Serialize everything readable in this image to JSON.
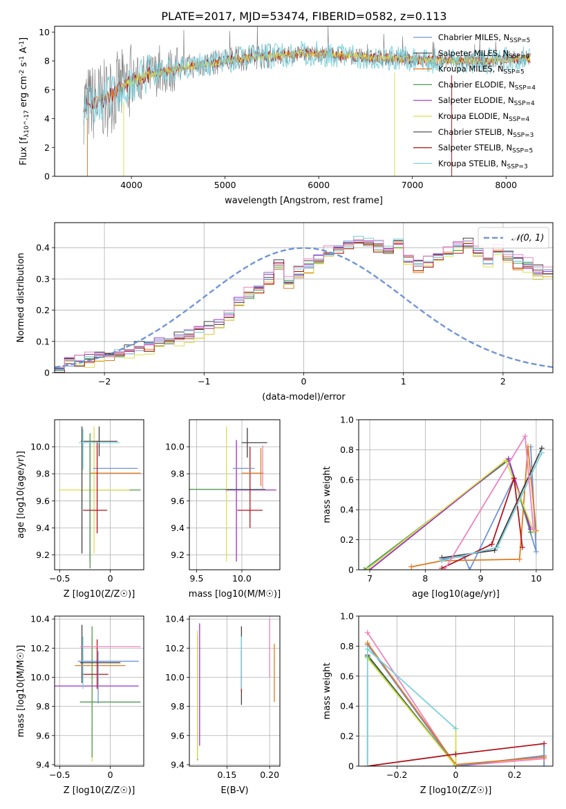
{
  "title": "PLATE=2017, MJD=53474, FIBERID=0582, z=0.113",
  "colors": {
    "blue": "#6f94d8",
    "orange": "#e07a1f",
    "green": "#4f9a4f",
    "purple": "#9a2fc8",
    "yellow": "#d9e04a",
    "dark": "#3f3f3f",
    "red": "#b0131d",
    "cyan": "#7ad1dc",
    "pink": "#ee82bf",
    "spectrum": "#808080",
    "grid": "#b0b0b0"
  },
  "chart_data": [
    {
      "id": "spectrum",
      "type": "line",
      "xlabel": "wavelength [Angstrom, rest frame]",
      "ylabel": "Flux [f_λ10^-17 erg cm^-2 s^-1 A^-1]",
      "xlim": [
        3180,
        8500
      ],
      "ylim": [
        0,
        10.4
      ],
      "xticks": [
        4000,
        5000,
        6000,
        7000,
        8000
      ],
      "yticks": [
        0,
        2,
        4,
        6,
        8,
        10
      ],
      "grid": false,
      "legend_position": "right",
      "legend": [
        {
          "name": "Chabrier MILES, N_SSP=5",
          "color_key": "blue"
        },
        {
          "name": "Salpeter MILES, N_SSP=4",
          "color_key": "dark"
        },
        {
          "name": "Kroupa MILES, N_SSP=5",
          "color_key": "orange"
        },
        {
          "name": "Chabrier ELODIE, N_SSP=4",
          "color_key": "green"
        },
        {
          "name": "Salpeter ELODIE, N_SSP=4",
          "color_key": "purple"
        },
        {
          "name": "Kroupa ELODIE, N_SSP=4",
          "color_key": "yellow"
        },
        {
          "name": "Chabrier STELIB, N_SSP=3",
          "color_key": "dark"
        },
        {
          "name": "Salpeter STELIB, N_SSP=5",
          "color_key": "red"
        },
        {
          "name": "Kroupa STELIB, N_SSP=3",
          "color_key": "cyan"
        }
      ],
      "continuum": {
        "x": [
          3520,
          3600,
          3700,
          3800,
          3900,
          4000,
          4200,
          4400,
          4600,
          4800,
          5000,
          5200,
          5400,
          5600,
          5800,
          6000,
          6200,
          6400,
          6600,
          6800,
          7000,
          7200,
          7400,
          7600,
          7800,
          8000,
          8250
        ],
        "y": [
          5.0,
          5.1,
          5.3,
          5.7,
          6.1,
          6.6,
          7.0,
          7.3,
          7.6,
          7.8,
          8.0,
          8.2,
          8.3,
          8.4,
          8.5,
          8.5,
          8.4,
          8.3,
          8.2,
          8.2,
          8.1,
          8.0,
          8.0,
          8.0,
          8.0,
          8.1,
          8.2
        ]
      },
      "spikes": [
        {
          "x": 3530,
          "y": 0
        },
        {
          "x": 3918,
          "y": 0
        },
        {
          "x": 6810,
          "y": 0
        },
        {
          "x": 7420,
          "y": 0
        }
      ]
    },
    {
      "id": "residual-hist",
      "type": "step",
      "xlabel": "(data-model)/error",
      "ylabel": "Normed distribution",
      "xlim": [
        -2.5,
        2.5
      ],
      "ylim": [
        0,
        0.48
      ],
      "xticks": [
        -2,
        -1,
        0,
        1,
        2
      ],
      "yticks": [
        0.0,
        0.1,
        0.2,
        0.3,
        0.4
      ],
      "grid": true,
      "legend_position": "top-right",
      "legend": [
        {
          "name": "𝒩(0, 1)",
          "style": "dashed",
          "color_key": "blue"
        }
      ],
      "bin_width": 0.1,
      "base_values": [
        0.02,
        0.03,
        0.035,
        0.04,
        0.05,
        0.05,
        0.06,
        0.07,
        0.08,
        0.08,
        0.09,
        0.1,
        0.11,
        0.12,
        0.13,
        0.14,
        0.15,
        0.18,
        0.22,
        0.25,
        0.26,
        0.3,
        0.34,
        0.28,
        0.32,
        0.34,
        0.36,
        0.38,
        0.39,
        0.41,
        0.42,
        0.41,
        0.4,
        0.39,
        0.41,
        0.36,
        0.34,
        0.35,
        0.37,
        0.38,
        0.4,
        0.41,
        0.38,
        0.35,
        0.39,
        0.37,
        0.35,
        0.34,
        0.32,
        0.31,
        0.3,
        0.28,
        0.27,
        0.25,
        0.26,
        0.24,
        0.22,
        0.21,
        0.23,
        0.18,
        0.17,
        0.16,
        0.15,
        0.14,
        0.12,
        0.11,
        0.1,
        0.09,
        0.08,
        0.07,
        0.06,
        0.055,
        0.05,
        0.04,
        0.035,
        0.03,
        0.03,
        0.025,
        0.02,
        0.02
      ],
      "series": [
        {
          "name": "Chabrier MILES",
          "color_key": "blue",
          "offset": 0.004
        },
        {
          "name": "Kroupa MILES",
          "color_key": "orange",
          "offset": -0.006
        },
        {
          "name": "Chabrier ELODIE",
          "color_key": "green",
          "offset": 0.002
        },
        {
          "name": "Salpeter ELODIE",
          "color_key": "purple",
          "offset": 0.008
        },
        {
          "name": "Kroupa ELODIE",
          "color_key": "yellow",
          "offset": -0.01
        },
        {
          "name": "Chabrier STELIB",
          "color_key": "dark",
          "offset": 0.01
        },
        {
          "name": "Salpeter STELIB",
          "color_key": "red",
          "offset": -0.004
        },
        {
          "name": "Kroupa STELIB",
          "color_key": "cyan",
          "offset": 0.006
        },
        {
          "name": "Salpeter MILES",
          "color_key": "pink",
          "offset": 0.014
        }
      ]
    },
    {
      "id": "z-vs-age",
      "type": "errorbar",
      "xlabel": "Z [log10(Z/Z☉)]",
      "ylabel": "age  [log10(age/yr)]",
      "xlim": [
        -0.55,
        0.33
      ],
      "ylim": [
        9.09,
        10.2
      ],
      "xticks": [
        -0.5,
        0.0
      ],
      "yticks": [
        9.2,
        9.4,
        9.6,
        9.8,
        10.0
      ],
      "grid": true,
      "points": [
        {
          "x": 0.0,
          "xerr": 0.3,
          "y": 9.68,
          "yerr": 0.0,
          "color_key": "green"
        },
        {
          "x": -0.16,
          "xerr": 0.35,
          "y": 9.68,
          "yerr": 0.47,
          "color_key": "yellow"
        },
        {
          "x": -0.28,
          "xerr": 0.0,
          "y": 9.68,
          "yerr": 0.47,
          "color_key": "dark"
        },
        {
          "x": 0.05,
          "xerr": 0.25,
          "y": 9.805,
          "yerr": 0.0,
          "color_key": "orange"
        },
        {
          "x": 0.05,
          "xerr": 0.22,
          "y": 9.84,
          "yerr": 0.0,
          "color_key": "blue"
        },
        {
          "x": -0.2,
          "xerr": 0.0,
          "y": 9.6,
          "yerr": 0.45,
          "color_key": "purple"
        },
        {
          "x": -0.11,
          "xerr": 0.18,
          "y": 10.04,
          "yerr": 0.11,
          "color_key": "dark"
        },
        {
          "x": -0.2,
          "xerr": 0.0,
          "y": 9.6,
          "yerr": 0.5,
          "color_key": "green"
        },
        {
          "x": -0.15,
          "xerr": 0.12,
          "y": 9.53,
          "yerr": 0.0,
          "color_key": "red"
        },
        {
          "x": -0.13,
          "xerr": 0.0,
          "y": 9.7,
          "yerr": 0.34,
          "color_key": "red"
        },
        {
          "x": -0.27,
          "xerr": 0.0,
          "y": 9.98,
          "yerr": 0.15,
          "color_key": "cyan"
        },
        {
          "x": -0.11,
          "xerr": 0.2,
          "y": 10.03,
          "yerr": 0.0,
          "color_key": "cyan"
        }
      ]
    },
    {
      "id": "mass-vs-age",
      "type": "errorbar",
      "xlabel": "mass [log10(M/M☉)]",
      "ylabel": "",
      "xlim": [
        9.42,
        10.42
      ],
      "ylim": [
        9.09,
        10.2
      ],
      "xticks": [
        9.5,
        10.0
      ],
      "yticks": [
        9.2,
        9.4,
        9.6,
        9.8,
        10.0
      ],
      "grid": true,
      "points": [
        {
          "x": 9.83,
          "xerr": 0.43,
          "y": 9.685,
          "yerr": 0.0,
          "color_key": "green"
        },
        {
          "x": 9.83,
          "xerr": 0.0,
          "y": 9.65,
          "yerr": 0.5,
          "color_key": "yellow"
        },
        {
          "x": 9.94,
          "xerr": 0.0,
          "y": 9.6,
          "yerr": 0.45,
          "color_key": "purple"
        },
        {
          "x": 10.1,
          "xerr": 0.28,
          "y": 9.68,
          "yerr": 0.0,
          "color_key": "purple"
        },
        {
          "x": 10.06,
          "xerr": 0.0,
          "y": 10.03,
          "yerr": 0.11,
          "color_key": "dark"
        },
        {
          "x": 10.14,
          "xerr": 0.14,
          "y": 10.03,
          "yerr": 0.0,
          "color_key": "dark"
        },
        {
          "x": 10.09,
          "xerr": 0.0,
          "y": 9.7,
          "yerr": 0.3,
          "color_key": "red"
        },
        {
          "x": 10.09,
          "xerr": 0.14,
          "y": 9.53,
          "yerr": 0.0,
          "color_key": "red"
        },
        {
          "x": 10.02,
          "xerr": 0.12,
          "y": 9.84,
          "yerr": 0.0,
          "color_key": "blue"
        },
        {
          "x": 10.21,
          "xerr": 0.0,
          "y": 9.85,
          "yerr": 0.14,
          "color_key": "orange"
        },
        {
          "x": 10.12,
          "xerr": 0.12,
          "y": 9.805,
          "yerr": 0.0,
          "color_key": "orange"
        },
        {
          "x": 10.23,
          "xerr": 0.0,
          "y": 9.85,
          "yerr": 0.16,
          "color_key": "pink"
        }
      ]
    },
    {
      "id": "age-mass-weight",
      "type": "line",
      "xlabel": "age  [log10(age/yr)]",
      "ylabel": "mass weight",
      "xlim": [
        6.8,
        10.3
      ],
      "ylim": [
        0,
        1.0
      ],
      "xticks": [
        7,
        8,
        9,
        10
      ],
      "yticks": [
        0.0,
        0.2,
        0.4,
        0.6,
        0.8,
        1.0
      ],
      "grid": true,
      "series": [
        {
          "name": "Chabrier MILES",
          "color_key": "blue",
          "x": [
            8.3,
            8.7,
            8.8,
            9.6,
            10.0,
            9.9
          ],
          "y": [
            0.07,
            0.09,
            0.0,
            0.61,
            0.12,
            0.82
          ]
        },
        {
          "name": "Kroupa MILES",
          "color_key": "orange",
          "x": [
            7.75,
            8.3,
            9.7,
            9.85,
            10.0
          ],
          "y": [
            0.02,
            0.06,
            0.07,
            0.82,
            0.26
          ]
        },
        {
          "name": "Chabrier ELODIE",
          "color_key": "green",
          "x": [
            6.9,
            9.5,
            9.9
          ],
          "y": [
            0.0,
            0.73,
            0.25
          ]
        },
        {
          "name": "Salpeter ELODIE",
          "color_key": "purple",
          "x": [
            7.0,
            9.5,
            9.9
          ],
          "y": [
            0.0,
            0.74,
            0.27
          ]
        },
        {
          "name": "Kroupa ELODIE",
          "color_key": "yellow",
          "x": [
            6.95,
            9.45,
            9.95
          ],
          "y": [
            0.0,
            0.73,
            0.26
          ]
        },
        {
          "name": "Chabrier STELIB",
          "color_key": "dark",
          "x": [
            8.3,
            9.25,
            10.1
          ],
          "y": [
            0.08,
            0.13,
            0.81
          ]
        },
        {
          "name": "Salpeter STELIB",
          "color_key": "red",
          "x": [
            8.3,
            9.2,
            9.6,
            9.75
          ],
          "y": [
            0.01,
            0.17,
            0.61,
            0.15
          ]
        },
        {
          "name": "Kroupa STELIB",
          "color_key": "cyan",
          "x": [
            8.3,
            9.3,
            10.1
          ],
          "y": [
            0.06,
            0.15,
            0.78
          ]
        },
        {
          "name": "Salpeter MILES",
          "color_key": "pink",
          "x": [
            8.35,
            9.8,
            9.95
          ],
          "y": [
            0.0,
            0.89,
            0.27
          ]
        }
      ]
    },
    {
      "id": "z-vs-mass",
      "type": "errorbar",
      "xlabel": "Z [log10(Z/Z☉)]",
      "ylabel": "mass [log10(M/M☉)]",
      "xlim": [
        -0.55,
        0.33
      ],
      "ylim": [
        9.39,
        10.42
      ],
      "xticks": [
        -0.5,
        0.0
      ],
      "yticks": [
        9.4,
        9.6,
        9.8,
        10.0,
        10.2,
        10.4
      ],
      "grid": true,
      "points": [
        {
          "x": 0.0,
          "xerr": 0.3,
          "y": 9.83,
          "yerr": 0.0,
          "color_key": "green"
        },
        {
          "x": -0.18,
          "xerr": 0.0,
          "y": 9.85,
          "yerr": 0.43,
          "color_key": "yellow"
        },
        {
          "x": -0.18,
          "xerr": 0.0,
          "y": 9.9,
          "yerr": 0.45,
          "color_key": "green"
        },
        {
          "x": -0.22,
          "xerr": 0.5,
          "y": 9.94,
          "yerr": 0.0,
          "color_key": "purple"
        },
        {
          "x": -0.28,
          "xerr": 0.0,
          "y": 10.16,
          "yerr": 0.2,
          "color_key": "dark"
        },
        {
          "x": -0.1,
          "xerr": 0.25,
          "y": 10.08,
          "yerr": 0.0,
          "color_key": "orange"
        },
        {
          "x": -0.02,
          "xerr": 0.3,
          "y": 10.11,
          "yerr": 0.0,
          "color_key": "blue"
        },
        {
          "x": -0.13,
          "xerr": 0.0,
          "y": 10.09,
          "yerr": 0.17,
          "color_key": "red"
        },
        {
          "x": -0.15,
          "xerr": 0.13,
          "y": 10.02,
          "yerr": 0.0,
          "color_key": "red"
        },
        {
          "x": -0.12,
          "xerr": 0.0,
          "y": 10.0,
          "yerr": 0.18,
          "color_key": "blue"
        },
        {
          "x": 0.0,
          "xerr": 0.3,
          "y": 10.21,
          "yerr": 0.0,
          "color_key": "pink"
        },
        {
          "x": -0.27,
          "xerr": 0.0,
          "y": 10.1,
          "yerr": 0.18,
          "color_key": "cyan"
        },
        {
          "x": -0.1,
          "xerr": 0.2,
          "y": 10.1,
          "yerr": 0.0,
          "color_key": "dark"
        }
      ]
    },
    {
      "id": "ebv-vs-mass",
      "type": "errorbar",
      "xlabel": "E(B-V)",
      "ylabel": "",
      "xlim": [
        0.106,
        0.212
      ],
      "ylim": [
        9.39,
        10.42
      ],
      "xticks": [
        0.15,
        0.2
      ],
      "yticks": [
        9.4,
        9.6,
        9.8,
        10.0,
        10.2,
        10.4
      ],
      "grid": true,
      "points": [
        {
          "x": 0.1155,
          "xerr": 0.0,
          "y": 9.86,
          "yerr": 0.43,
          "color_key": "green"
        },
        {
          "x": 0.1155,
          "xerr": 0.0,
          "y": 9.88,
          "yerr": 0.44,
          "color_key": "yellow"
        },
        {
          "x": 0.118,
          "xerr": 0.0,
          "y": 9.95,
          "yerr": 0.42,
          "color_key": "purple"
        },
        {
          "x": 0.167,
          "xerr": 0.0,
          "y": 10.08,
          "yerr": 0.27,
          "color_key": "dark"
        },
        {
          "x": 0.167,
          "xerr": 0.0,
          "y": 10.04,
          "yerr": 0.14,
          "color_key": "red"
        },
        {
          "x": 0.167,
          "xerr": 0.0,
          "y": 10.1,
          "yerr": 0.18,
          "color_key": "cyan"
        },
        {
          "x": 0.2055,
          "xerr": 0.0,
          "y": 10.03,
          "yerr": 0.2,
          "color_key": "orange"
        },
        {
          "x": 0.2,
          "xerr": 0.0,
          "y": 10.2,
          "yerr": 0.2,
          "color_key": "pink"
        }
      ]
    },
    {
      "id": "z-mass-weight",
      "type": "line",
      "xlabel": "Z [log10(Z/Z☉)]",
      "ylabel": "mass weight",
      "xlim": [
        -0.33,
        0.33
      ],
      "ylim": [
        0,
        1.0
      ],
      "xticks": [
        -0.2,
        0.0,
        0.2
      ],
      "yticks": [
        0.0,
        0.2,
        0.4,
        0.6,
        0.8,
        1.0
      ],
      "grid": true,
      "series": [
        {
          "name": "Salpeter MILES",
          "color_key": "pink",
          "x": [
            -0.3,
            0.0,
            0.3
          ],
          "y": [
            0.89,
            0.0,
            0.05
          ]
        },
        {
          "name": "Chabrier MILES",
          "color_key": "blue",
          "x": [
            -0.3,
            0.0,
            0.3
          ],
          "y": [
            0.81,
            0.0,
            0.07
          ]
        },
        {
          "name": "Kroupa MILES",
          "color_key": "orange",
          "x": [
            -0.3,
            0.0,
            0.3
          ],
          "y": [
            0.82,
            0.01,
            0.06
          ]
        },
        {
          "name": "Chabrier STELIB",
          "color_key": "dark",
          "x": [
            -0.3,
            0.0
          ],
          "y": [
            0.74,
            0.0
          ]
        },
        {
          "name": "Chabrier ELODIE",
          "color_key": "green",
          "x": [
            -0.3,
            0.0
          ],
          "y": [
            0.73,
            0.0
          ]
        },
        {
          "name": "Kroupa ELODIE",
          "color_key": "yellow",
          "x": [
            -0.3,
            0.0
          ],
          "y": [
            0.72,
            0.0
          ]
        },
        {
          "name": "Salpeter STELIB",
          "color_key": "red",
          "x": [
            -0.3,
            0.0,
            0.3
          ],
          "y": [
            0.0,
            0.08,
            0.15
          ]
        },
        {
          "name": "Kroupa STELIB",
          "color_key": "cyan",
          "x": [
            -0.3,
            -0.3,
            0.0
          ],
          "y": [
            0.0,
            0.78,
            0.25
          ]
        }
      ],
      "vertical_marks": [
        {
          "x": -0.3,
          "y0": 0.02,
          "y1": 0.6,
          "color_key": "cyan"
        },
        {
          "x": 0.0,
          "y0": 0.0,
          "y1": 0.27,
          "color_key": "yellow"
        },
        {
          "x": 0.3,
          "y0": 0.0,
          "y1": 0.14,
          "color_key": "blue"
        }
      ]
    }
  ]
}
